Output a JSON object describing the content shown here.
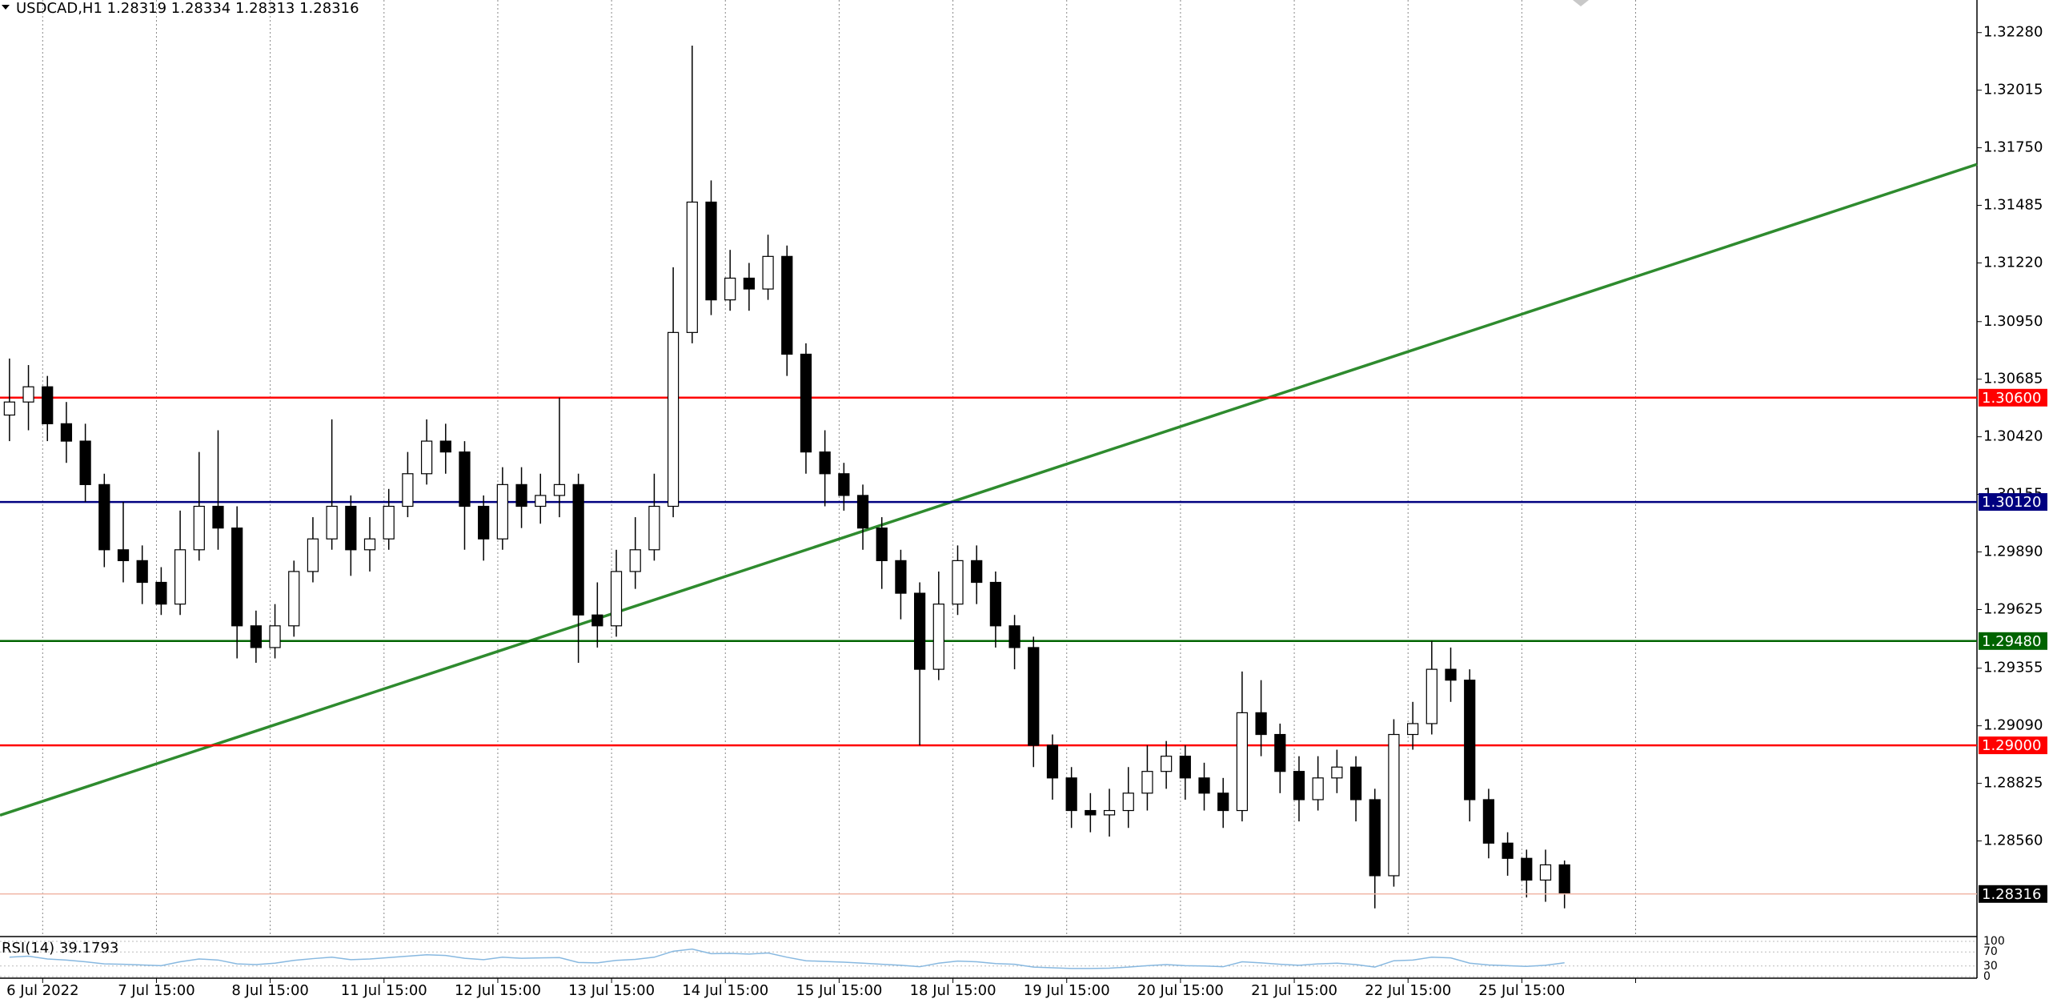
{
  "chart_data": {
    "type": "candlestick",
    "title": "USDCAD,H1  1.28319 1.28334 1.28313 1.28316",
    "up_color": "#ffffff",
    "down_color": "#000000",
    "x": [
      0,
      4,
      8,
      12,
      16,
      20,
      24,
      28,
      32,
      36,
      40,
      44,
      48,
      52,
      56,
      60,
      64,
      68,
      72,
      76,
      80,
      84,
      88,
      92,
      96,
      100,
      104,
      108,
      112,
      116,
      120,
      124,
      128,
      132,
      136,
      140,
      144,
      148,
      152,
      156,
      160,
      164,
      168,
      172,
      176,
      180,
      184,
      188,
      192,
      196,
      200,
      204,
      208,
      212,
      216,
      220,
      224,
      228,
      232,
      236,
      240,
      244,
      248,
      252,
      256,
      260,
      264,
      268,
      272,
      276,
      280,
      284,
      288,
      292,
      296,
      300,
      304,
      308,
      312,
      316,
      320,
      324,
      328
    ],
    "open": [
      1.3052,
      1.3058,
      1.3065,
      1.3048,
      1.304,
      1.302,
      1.299,
      1.2985,
      1.2975,
      1.2965,
      1.299,
      1.301,
      1.3,
      1.2955,
      1.2945,
      1.2955,
      1.298,
      1.2995,
      1.301,
      1.299,
      1.2995,
      1.301,
      1.3025,
      1.304,
      1.3035,
      1.301,
      1.2995,
      1.302,
      1.301,
      1.3015,
      1.302,
      1.296,
      1.2955,
      1.298,
      1.299,
      1.301,
      1.309,
      1.315,
      1.3105,
      1.3115,
      1.311,
      1.3125,
      1.308,
      1.3035,
      1.3025,
      1.3015,
      1.3,
      1.2985,
      1.297,
      1.2935,
      1.2965,
      1.2985,
      1.2975,
      1.2955,
      1.2945,
      1.29,
      1.2885,
      1.287,
      1.2868,
      1.287,
      1.2878,
      1.2888,
      1.2895,
      1.2885,
      1.2878,
      1.287,
      1.2915,
      1.2905,
      1.2888,
      1.2875,
      1.2885,
      1.289,
      1.2875,
      1.284,
      1.2905,
      1.291,
      1.2935,
      1.293,
      1.2875,
      1.2855,
      1.2848,
      1.2838,
      1.2845
    ],
    "high": [
      1.3078,
      1.3075,
      1.307,
      1.3058,
      1.3048,
      1.3025,
      1.3012,
      1.2992,
      1.2982,
      1.3008,
      1.3035,
      1.3045,
      1.301,
      1.2962,
      1.2965,
      1.2985,
      1.3005,
      1.305,
      1.3015,
      1.3005,
      1.3018,
      1.3035,
      1.305,
      1.3048,
      1.304,
      1.3015,
      1.3028,
      1.3028,
      1.3025,
      1.306,
      1.3025,
      1.2975,
      1.299,
      1.3005,
      1.3025,
      1.312,
      1.3222,
      1.316,
      1.3128,
      1.3122,
      1.3135,
      1.313,
      1.3085,
      1.3045,
      1.303,
      1.302,
      1.3005,
      1.299,
      1.2975,
      1.298,
      1.2992,
      1.2992,
      1.298,
      1.296,
      1.295,
      1.2905,
      1.289,
      1.2878,
      1.288,
      1.289,
      1.29,
      1.2902,
      1.29,
      1.2892,
      1.2885,
      1.2934,
      1.293,
      1.291,
      1.2895,
      1.2895,
      1.2898,
      1.2895,
      1.288,
      1.2912,
      1.292,
      1.2948,
      1.2945,
      1.2935,
      1.288,
      1.286,
      1.2852,
      1.2852,
      1.2847
    ],
    "low": [
      1.304,
      1.3045,
      1.304,
      1.303,
      1.3012,
      1.2982,
      1.2975,
      1.2965,
      1.296,
      1.296,
      1.2985,
      1.299,
      1.294,
      1.2938,
      1.294,
      1.295,
      1.2975,
      1.299,
      1.2978,
      1.298,
      1.299,
      1.3005,
      1.302,
      1.3025,
      1.299,
      1.2985,
      1.299,
      1.3,
      1.3002,
      1.3005,
      1.2938,
      1.2945,
      1.295,
      1.2972,
      1.2985,
      1.3005,
      1.3085,
      1.3098,
      1.31,
      1.31,
      1.3105,
      1.307,
      1.3025,
      1.301,
      1.3008,
      1.299,
      1.2972,
      1.2958,
      1.29,
      1.293,
      1.296,
      1.2965,
      1.2945,
      1.2935,
      1.289,
      1.2875,
      1.2862,
      1.286,
      1.2858,
      1.2862,
      1.287,
      1.288,
      1.2875,
      1.287,
      1.2862,
      1.2865,
      1.2895,
      1.2878,
      1.2865,
      1.287,
      1.2878,
      1.2865,
      1.2825,
      1.2835,
      1.2898,
      1.2905,
      1.292,
      1.2865,
      1.2848,
      1.284,
      1.283,
      1.2828,
      1.2825
    ],
    "close": [
      1.3058,
      1.3065,
      1.3048,
      1.304,
      1.302,
      1.299,
      1.2985,
      1.2975,
      1.2965,
      1.299,
      1.301,
      1.3,
      1.2955,
      1.2945,
      1.2955,
      1.298,
      1.2995,
      1.301,
      1.299,
      1.2995,
      1.301,
      1.3025,
      1.304,
      1.3035,
      1.301,
      1.2995,
      1.302,
      1.301,
      1.3015,
      1.302,
      1.296,
      1.2955,
      1.298,
      1.299,
      1.301,
      1.309,
      1.315,
      1.3105,
      1.3115,
      1.311,
      1.3125,
      1.308,
      1.3035,
      1.3025,
      1.3015,
      1.3,
      1.2985,
      1.297,
      1.2935,
      1.2965,
      1.2985,
      1.2975,
      1.2955,
      1.2945,
      1.29,
      1.2885,
      1.287,
      1.2868,
      1.287,
      1.2878,
      1.2888,
      1.2895,
      1.2885,
      1.2878,
      1.287,
      1.2915,
      1.2905,
      1.2888,
      1.2875,
      1.2885,
      1.289,
      1.2875,
      1.284,
      1.2905,
      1.291,
      1.2935,
      1.293,
      1.2875,
      1.2855,
      1.2848,
      1.2838,
      1.2845,
      1.28316
    ],
    "xlim": [
      -2,
      415
    ],
    "xticks": [
      {
        "value": 7,
        "label": "6 Jul 2022"
      },
      {
        "value": 31,
        "label": "7 Jul 15:00"
      },
      {
        "value": 55,
        "label": "8 Jul 15:00"
      },
      {
        "value": 79,
        "label": "11 Jul 15:00"
      },
      {
        "value": 103,
        "label": "12 Jul 15:00"
      },
      {
        "value": 127,
        "label": "13 Jul 15:00"
      },
      {
        "value": 151,
        "label": "14 Jul 15:00"
      },
      {
        "value": 175,
        "label": "15 Jul 15:00"
      },
      {
        "value": 199,
        "label": "18 Jul 15:00"
      },
      {
        "value": 223,
        "label": "19 Jul 15:00"
      },
      {
        "value": 247,
        "label": "20 Jul 15:00"
      },
      {
        "value": 271,
        "label": "21 Jul 15:00"
      },
      {
        "value": 295,
        "label": "22 Jul 15:00"
      },
      {
        "value": 319,
        "label": "25 Jul 15:00"
      },
      {
        "value": 343,
        "label": null
      }
    ],
    "ylim": [
      1.2812,
      1.3243
    ],
    "yticks": [
      {
        "value": 1.2856,
        "label": "1.28560"
      },
      {
        "value": 1.28825,
        "label": "1.28825"
      },
      {
        "value": 1.2909,
        "label": "1.29090"
      },
      {
        "value": 1.29355,
        "label": "1.29355"
      },
      {
        "value": 1.29625,
        "label": "1.29625"
      },
      {
        "value": 1.2989,
        "label": "1.29890"
      },
      {
        "value": 1.30155,
        "label": "1.30155"
      },
      {
        "value": 1.3042,
        "label": "1.30420"
      },
      {
        "value": 1.30685,
        "label": "1.30685"
      },
      {
        "value": 1.3095,
        "label": "1.30950"
      },
      {
        "value": 1.3122,
        "label": "1.31220"
      },
      {
        "value": 1.31485,
        "label": "1.31485"
      },
      {
        "value": 1.3175,
        "label": "1.31750"
      },
      {
        "value": 1.32015,
        "label": "1.32015"
      },
      {
        "value": 1.3228,
        "label": "1.32280"
      }
    ],
    "levels": [
      {
        "value": 1.306,
        "label": "1.30600",
        "color": "#ff0000"
      },
      {
        "value": 1.3012,
        "label": "1.30120",
        "color": "#000080"
      },
      {
        "value": 1.2948,
        "label": "1.29480",
        "color": "#006400"
      },
      {
        "value": 1.29,
        "label": "1.29000",
        "color": "#ff0000"
      }
    ],
    "last_price": {
      "value": 1.28316,
      "label": "1.28316",
      "color": "#000000"
    },
    "trendline": {
      "color": "#2e8b2e",
      "values": [
        1.28678,
        1.31674
      ]
    },
    "indicator": {
      "title": "RSI(14) 39.1793",
      "color": "#87b8e0",
      "ylim": [
        0,
        100
      ],
      "yticks": [
        0,
        30,
        70,
        100
      ],
      "values": [
        55,
        58,
        50,
        47,
        42,
        36,
        35,
        33,
        31,
        42,
        50,
        47,
        36,
        34,
        38,
        46,
        51,
        55,
        48,
        50,
        54,
        58,
        62,
        60,
        52,
        48,
        55,
        52,
        53,
        54,
        40,
        39,
        46,
        49,
        55,
        72,
        78,
        65,
        66,
        64,
        67,
        55,
        45,
        43,
        41,
        38,
        35,
        32,
        28,
        38,
        44,
        42,
        37,
        35,
        27,
        25,
        23,
        23,
        24,
        27,
        31,
        34,
        31,
        30,
        28,
        42,
        39,
        35,
        32,
        36,
        38,
        34,
        27,
        45,
        47,
        55,
        53,
        38,
        33,
        31,
        29,
        32,
        39.1793
      ]
    }
  }
}
